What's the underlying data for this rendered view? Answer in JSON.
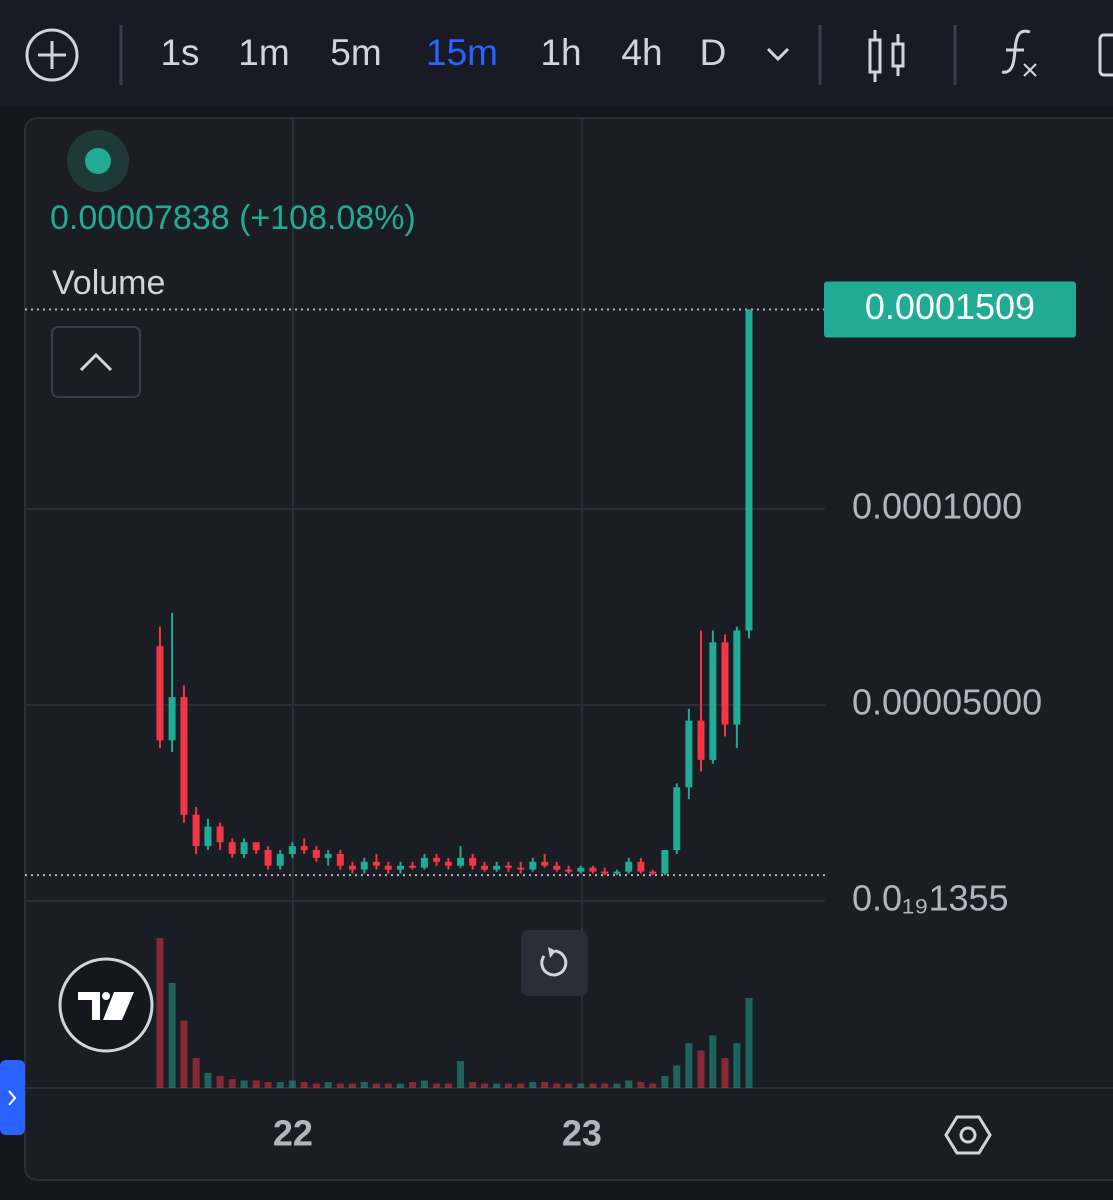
{
  "toolbar": {
    "intervals": [
      "1s",
      "1m",
      "5m",
      "15m",
      "1h",
      "4h",
      "D"
    ],
    "active": "15m"
  },
  "legend": {
    "price": "0.00007838 (+108.08%)",
    "volume_label": "Volume"
  },
  "chart_data": {
    "type": "candlestick",
    "x": [
      21.54,
      21.582,
      21.623,
      21.665,
      21.706,
      21.748,
      21.79,
      21.831,
      21.873,
      21.914,
      21.956,
      21.998,
      22.039,
      22.081,
      22.122,
      22.164,
      22.206,
      22.247,
      22.289,
      22.33,
      22.372,
      22.414,
      22.455,
      22.497,
      22.538,
      22.58,
      22.622,
      22.663,
      22.705,
      22.746,
      22.788,
      22.83,
      22.871,
      22.913,
      22.954,
      22.996,
      23.038,
      23.079,
      23.121,
      23.162,
      23.204,
      23.245,
      23.287,
      23.328,
      23.37,
      23.412,
      23.453,
      23.495,
      23.536,
      23.578
    ],
    "open": [
      6.5e-05,
      4.1e-05,
      5.2e-05,
      2.2e-05,
      1.4e-05,
      1.9e-05,
      1.5e-05,
      1.2e-05,
      1.5e-05,
      1.3e-05,
      9e-06,
      1.2e-05,
      1.4e-05,
      1.3e-05,
      1.1e-05,
      1.2e-05,
      9e-06,
      8e-06,
      1e-05,
      9e-06,
      8e-06,
      9e-06,
      8.5e-06,
      1.1e-05,
      1e-05,
      9e-06,
      1.1e-05,
      9e-06,
      8e-06,
      9e-06,
      8.5e-06,
      8e-06,
      1e-05,
      9e-06,
      8e-06,
      7.5e-06,
      8.5e-06,
      7.5e-06,
      7e-06,
      7.5e-06,
      1e-05,
      7.5e-06,
      7e-06,
      1.3e-05,
      2.9e-05,
      4.6e-05,
      3.6e-05,
      6.6e-05,
      4.5e-05,
      6.9e-05
    ],
    "high": [
      7e-05,
      7.35e-05,
      5.5e-05,
      2.4e-05,
      2.1e-05,
      2e-05,
      1.6e-05,
      1.6e-05,
      1.5e-05,
      1.4e-05,
      1.3e-05,
      1.5e-05,
      1.6e-05,
      1.4e-05,
      1.3e-05,
      1.3e-05,
      1e-05,
      1.1e-05,
      1.2e-05,
      1e-05,
      1e-05,
      1e-05,
      1.2e-05,
      1.2e-05,
      1.1e-05,
      1.4e-05,
      1.2e-05,
      1e-05,
      1e-05,
      1e-05,
      1e-05,
      1.1e-05,
      1.2e-05,
      1e-05,
      9e-06,
      9e-06,
      9e-06,
      8.5e-06,
      8e-06,
      1.1e-05,
      1.1e-05,
      8e-06,
      1.3e-05,
      3e-05,
      4.9e-05,
      6.9e-05,
      6.9e-05,
      6.8e-05,
      7e-05,
      0.0001509
    ],
    "low": [
      3.9e-05,
      3.8e-05,
      2e-05,
      1.2e-05,
      1.3e-05,
      1.3e-05,
      1.1e-05,
      1.1e-05,
      1.2e-05,
      8e-06,
      8e-06,
      1.1e-05,
      1.2e-05,
      1e-05,
      9e-06,
      8e-06,
      7e-06,
      7e-06,
      8e-06,
      7e-06,
      7e-06,
      8e-06,
      8e-06,
      9e-06,
      8e-06,
      8.5e-06,
      8e-06,
      7.5e-06,
      7.5e-06,
      7.5e-06,
      7e-06,
      7.5e-06,
      8.5e-06,
      7.5e-06,
      7e-06,
      7e-06,
      7e-06,
      6.6e-06,
      6.6e-06,
      7e-06,
      7e-06,
      6.6e-06,
      6.6e-06,
      1.2e-05,
      2.6e-05,
      3.3e-05,
      3.5e-05,
      4.2e-05,
      3.9e-05,
      6.7e-05
    ],
    "close": [
      4.1e-05,
      5.2e-05,
      2.2e-05,
      1.4e-05,
      1.9e-05,
      1.5e-05,
      1.2e-05,
      1.5e-05,
      1.3e-05,
      9e-06,
      1.2e-05,
      1.4e-05,
      1.3e-05,
      1.1e-05,
      1.2e-05,
      9e-06,
      8e-06,
      1e-05,
      9e-06,
      8e-06,
      9e-06,
      8.5e-06,
      1.1e-05,
      1e-05,
      9e-06,
      1.1e-05,
      9e-06,
      8e-06,
      9e-06,
      8.5e-06,
      8e-06,
      1e-05,
      9e-06,
      8e-06,
      7.5e-06,
      8.5e-06,
      7.5e-06,
      7e-06,
      7.5e-06,
      1e-05,
      7.5e-06,
      7e-06,
      1.3e-05,
      2.9e-05,
      4.6e-05,
      3.6e-05,
      6.6e-05,
      4.5e-05,
      6.9e-05,
      0.0001509
    ],
    "volume": [
      100,
      70,
      45,
      20,
      10,
      8,
      6,
      5,
      5,
      4,
      4,
      5,
      4,
      3,
      4,
      3,
      3,
      4,
      3,
      3,
      3,
      4,
      5,
      3,
      3,
      18,
      4,
      3,
      3,
      3,
      3,
      4,
      4,
      3,
      3,
      3,
      3,
      3,
      3,
      5,
      4,
      3,
      8,
      15,
      30,
      25,
      35,
      20,
      30,
      60
    ],
    "up_color": "#22ab94",
    "down_color": "#f23645",
    "xlim": [
      21.073,
      23.841
    ],
    "xticks": [
      22,
      23
    ],
    "ylim": [
      -4.77e-05,
      0.00019974
    ],
    "yticks": [
      {
        "value": 0.0001,
        "label": "0.0001000"
      },
      {
        "value": 5e-05,
        "label": "0.00005000"
      },
      {
        "value": 1.355e-20,
        "label": "0.0₁₉1355"
      }
    ],
    "last_price": {
      "value": 0.0001509,
      "label": "0.0001509"
    },
    "low_marker": 6.6e-06,
    "grid": true
  }
}
